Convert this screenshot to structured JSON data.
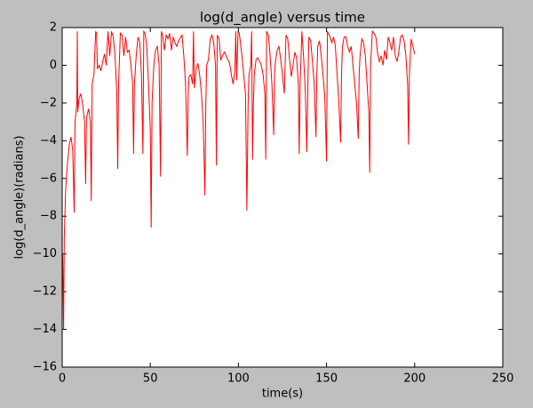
{
  "chart_data": {
    "type": "line",
    "title": "log(d_angle) versus time",
    "xlabel": "time(s)",
    "ylabel": "log(d_angle)(radians)",
    "xlim": [
      0,
      250
    ],
    "xticks": [
      0,
      50,
      100,
      150,
      200,
      250
    ],
    "ylim": [
      -16,
      2
    ],
    "yticks": [
      {
        "value": -16,
        "label": "−16"
      },
      {
        "value": -14,
        "label": "−14"
      },
      {
        "value": -12,
        "label": "−12"
      },
      {
        "value": -10,
        "label": "−10"
      },
      {
        "value": -8,
        "label": "−8"
      },
      {
        "value": -6,
        "label": "−6"
      },
      {
        "value": -4,
        "label": "−4"
      },
      {
        "value": -2,
        "label": "−2"
      },
      0,
      2
    ],
    "color": "#ff0000",
    "x": [
      0.3,
      0.8,
      1.2,
      2,
      3,
      4,
      5,
      6,
      6.8,
      7.3,
      8.3,
      8.6,
      8.8,
      9.5,
      10.5,
      11.5,
      12.7,
      13.3,
      13.8,
      15,
      16,
      16.5,
      17,
      18,
      19,
      19.5,
      20,
      21,
      22,
      23,
      24,
      25,
      26,
      27,
      28,
      29,
      30,
      31,
      31.5,
      32,
      33,
      34,
      35,
      36,
      37,
      38,
      39,
      40,
      40.5,
      41,
      42,
      43,
      44,
      45,
      45.8,
      46.3,
      47,
      48,
      49,
      50,
      50.5,
      51,
      52,
      53,
      54,
      55,
      55.8,
      56.3,
      57,
      58,
      59,
      60,
      61,
      62,
      63,
      64,
      65,
      66,
      68,
      69,
      70,
      71,
      71.5,
      72,
      73,
      74,
      74.5,
      75,
      76,
      77,
      78,
      79,
      80,
      81,
      81.5,
      82,
      83,
      84,
      85,
      86,
      87,
      87.5,
      88,
      89,
      90,
      91,
      92,
      93,
      94,
      95,
      96,
      97,
      98,
      98.5,
      99,
      99.8,
      100.5,
      102,
      103,
      104,
      104.8,
      105.5,
      106,
      107,
      107.5,
      108,
      108.5,
      109,
      110,
      111,
      112,
      113,
      114,
      115,
      115.5,
      116,
      117,
      118,
      119,
      120,
      120.5,
      121,
      122,
      123,
      124,
      125,
      126,
      127,
      128,
      129,
      130,
      131,
      132,
      133,
      134,
      134.5,
      135,
      136,
      137,
      138,
      138.8,
      139.5,
      140,
      141,
      142,
      143,
      144,
      144.5,
      145,
      146,
      147,
      148,
      149,
      150,
      150.5,
      151,
      152,
      153,
      154,
      155,
      156,
      157,
      158,
      158.5,
      159,
      160,
      161,
      162,
      163,
      164,
      165,
      166,
      167,
      168,
      168.5,
      169,
      170,
      171,
      172,
      173,
      174,
      174.5,
      175,
      176,
      177,
      178,
      179,
      180,
      181,
      182,
      183,
      184,
      185,
      186,
      187,
      188,
      189,
      190,
      191,
      192,
      193,
      194,
      195,
      196,
      196.5,
      197,
      198,
      199,
      200
    ],
    "values": [
      -10,
      -14,
      -9,
      -6.5,
      -5.2,
      -4.2,
      -3.8,
      -4.5,
      -7.8,
      -3,
      -2,
      1.8,
      -2.5,
      -1.8,
      -1.5,
      -2,
      -3,
      -6.3,
      -2.8,
      -2.3,
      -3,
      -7.2,
      -1,
      -0.5,
      1.8,
      1.7,
      -0.2,
      0,
      -0.3,
      0.2,
      0.6,
      0,
      1.8,
      0.5,
      1.8,
      1.5,
      0.5,
      -1.5,
      -5.5,
      -1,
      1.7,
      1.6,
      0.5,
      1.5,
      0.7,
      0.8,
      0,
      -1,
      -4.7,
      -1,
      0.5,
      1.5,
      1.2,
      -0.5,
      -4.7,
      1.8,
      1.7,
      1,
      -1,
      -3.5,
      -8.6,
      -2,
      0,
      0.8,
      1,
      0,
      -5.9,
      1.8,
      1.6,
      0.8,
      1.6,
      1.4,
      1.7,
      0.8,
      1.5,
      1.2,
      1,
      1.3,
      1.6,
      0.5,
      -1,
      -4.8,
      -1.5,
      -0.6,
      -0.5,
      -1,
      1.8,
      -1.2,
      -0.2,
      0.1,
      -0.5,
      -1.5,
      -3,
      -6.9,
      -2,
      0,
      0.3,
      1.4,
      1.6,
      1.2,
      0,
      -5.3,
      1.6,
      1.4,
      0.3,
      0.5,
      0.7,
      0.5,
      0.3,
      0.1,
      -0.5,
      -1,
      -0.3,
      1.8,
      -0.8,
      1.8,
      1.7,
      0.5,
      -0.5,
      -1.5,
      -7.7,
      -2,
      -0.5,
      0,
      1.8,
      -5,
      -2,
      -0.5,
      0.3,
      0.4,
      0.2,
      0,
      -0.5,
      -1.5,
      -5,
      1.8,
      1.6,
      0.5,
      -1,
      -3.7,
      -0.5,
      0.2,
      0.8,
      1,
      0.3,
      -0.5,
      -1.5,
      1.6,
      1.4,
      0.3,
      -0.6,
      0,
      0.7,
      0.4,
      -1,
      -4.7,
      -1,
      1.8,
      0.4,
      -1.5,
      -4.6,
      -0.5,
      1.5,
      1.3,
      0.2,
      -1,
      -3.8,
      -0.5,
      1,
      1.3,
      0.5,
      -0.5,
      -1.7,
      -5.1,
      1.8,
      1.7,
      1.5,
      1.2,
      1.5,
      1,
      -0.5,
      -2,
      -4.1,
      -0.5,
      1,
      1.5,
      1.5,
      1,
      0.7,
      1,
      0,
      -1,
      -2,
      -3.9,
      -0.5,
      0.5,
      1.4,
      1.2,
      0.5,
      -1,
      -2.5,
      -5.7,
      0,
      1.8,
      1.7,
      1.5,
      0.6,
      0.2,
      0.5,
      0,
      0.8,
      0.3,
      1.5,
      1.2,
      0.8,
      1.5,
      0.5,
      0.2,
      0.7,
      1.5,
      1.6,
      1.3,
      0.5,
      -1,
      -4.2,
      -0.5,
      1.4,
      1,
      0.6
    ]
  }
}
